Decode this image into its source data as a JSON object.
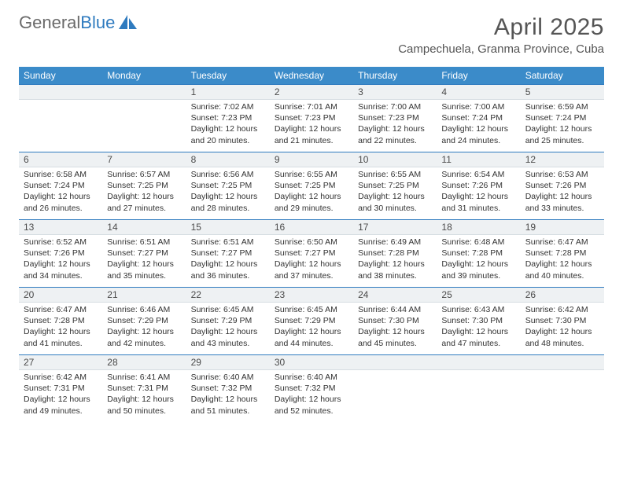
{
  "brand": {
    "word1": "General",
    "word2": "Blue",
    "icon_fill": "#2f7bbf",
    "text_gray": "#6b6b6b"
  },
  "title": "April 2025",
  "location": "Campechuela, Granma Province, Cuba",
  "colors": {
    "header_bg": "#3b8bc9",
    "header_text": "#ffffff",
    "row_border_top": "#2f7bbf",
    "daynum_bg": "#eef1f3",
    "body_text": "#333333"
  },
  "fonts": {
    "title_size_pt": 22,
    "location_size_pt": 11,
    "weekday_size_pt": 9,
    "daynum_size_pt": 9,
    "cell_size_pt": 8
  },
  "weekdays": [
    "Sunday",
    "Monday",
    "Tuesday",
    "Wednesday",
    "Thursday",
    "Friday",
    "Saturday"
  ],
  "grid": [
    [
      {
        "blank": true
      },
      {
        "blank": true
      },
      {
        "n": "1",
        "sunrise": "7:02 AM",
        "sunset": "7:23 PM",
        "daylight": "12 hours and 20 minutes."
      },
      {
        "n": "2",
        "sunrise": "7:01 AM",
        "sunset": "7:23 PM",
        "daylight": "12 hours and 21 minutes."
      },
      {
        "n": "3",
        "sunrise": "7:00 AM",
        "sunset": "7:23 PM",
        "daylight": "12 hours and 22 minutes."
      },
      {
        "n": "4",
        "sunrise": "7:00 AM",
        "sunset": "7:24 PM",
        "daylight": "12 hours and 24 minutes."
      },
      {
        "n": "5",
        "sunrise": "6:59 AM",
        "sunset": "7:24 PM",
        "daylight": "12 hours and 25 minutes."
      }
    ],
    [
      {
        "n": "6",
        "sunrise": "6:58 AM",
        "sunset": "7:24 PM",
        "daylight": "12 hours and 26 minutes."
      },
      {
        "n": "7",
        "sunrise": "6:57 AM",
        "sunset": "7:25 PM",
        "daylight": "12 hours and 27 minutes."
      },
      {
        "n": "8",
        "sunrise": "6:56 AM",
        "sunset": "7:25 PM",
        "daylight": "12 hours and 28 minutes."
      },
      {
        "n": "9",
        "sunrise": "6:55 AM",
        "sunset": "7:25 PM",
        "daylight": "12 hours and 29 minutes."
      },
      {
        "n": "10",
        "sunrise": "6:55 AM",
        "sunset": "7:25 PM",
        "daylight": "12 hours and 30 minutes."
      },
      {
        "n": "11",
        "sunrise": "6:54 AM",
        "sunset": "7:26 PM",
        "daylight": "12 hours and 31 minutes."
      },
      {
        "n": "12",
        "sunrise": "6:53 AM",
        "sunset": "7:26 PM",
        "daylight": "12 hours and 33 minutes."
      }
    ],
    [
      {
        "n": "13",
        "sunrise": "6:52 AM",
        "sunset": "7:26 PM",
        "daylight": "12 hours and 34 minutes."
      },
      {
        "n": "14",
        "sunrise": "6:51 AM",
        "sunset": "7:27 PM",
        "daylight": "12 hours and 35 minutes."
      },
      {
        "n": "15",
        "sunrise": "6:51 AM",
        "sunset": "7:27 PM",
        "daylight": "12 hours and 36 minutes."
      },
      {
        "n": "16",
        "sunrise": "6:50 AM",
        "sunset": "7:27 PM",
        "daylight": "12 hours and 37 minutes."
      },
      {
        "n": "17",
        "sunrise": "6:49 AM",
        "sunset": "7:28 PM",
        "daylight": "12 hours and 38 minutes."
      },
      {
        "n": "18",
        "sunrise": "6:48 AM",
        "sunset": "7:28 PM",
        "daylight": "12 hours and 39 minutes."
      },
      {
        "n": "19",
        "sunrise": "6:47 AM",
        "sunset": "7:28 PM",
        "daylight": "12 hours and 40 minutes."
      }
    ],
    [
      {
        "n": "20",
        "sunrise": "6:47 AM",
        "sunset": "7:28 PM",
        "daylight": "12 hours and 41 minutes."
      },
      {
        "n": "21",
        "sunrise": "6:46 AM",
        "sunset": "7:29 PM",
        "daylight": "12 hours and 42 minutes."
      },
      {
        "n": "22",
        "sunrise": "6:45 AM",
        "sunset": "7:29 PM",
        "daylight": "12 hours and 43 minutes."
      },
      {
        "n": "23",
        "sunrise": "6:45 AM",
        "sunset": "7:29 PM",
        "daylight": "12 hours and 44 minutes."
      },
      {
        "n": "24",
        "sunrise": "6:44 AM",
        "sunset": "7:30 PM",
        "daylight": "12 hours and 45 minutes."
      },
      {
        "n": "25",
        "sunrise": "6:43 AM",
        "sunset": "7:30 PM",
        "daylight": "12 hours and 47 minutes."
      },
      {
        "n": "26",
        "sunrise": "6:42 AM",
        "sunset": "7:30 PM",
        "daylight": "12 hours and 48 minutes."
      }
    ],
    [
      {
        "n": "27",
        "sunrise": "6:42 AM",
        "sunset": "7:31 PM",
        "daylight": "12 hours and 49 minutes."
      },
      {
        "n": "28",
        "sunrise": "6:41 AM",
        "sunset": "7:31 PM",
        "daylight": "12 hours and 50 minutes."
      },
      {
        "n": "29",
        "sunrise": "6:40 AM",
        "sunset": "7:32 PM",
        "daylight": "12 hours and 51 minutes."
      },
      {
        "n": "30",
        "sunrise": "6:40 AM",
        "sunset": "7:32 PM",
        "daylight": "12 hours and 52 minutes."
      },
      {
        "blank": true
      },
      {
        "blank": true
      },
      {
        "blank": true
      }
    ]
  ],
  "labels": {
    "sunrise": "Sunrise:",
    "sunset": "Sunset:",
    "daylight": "Daylight:"
  }
}
